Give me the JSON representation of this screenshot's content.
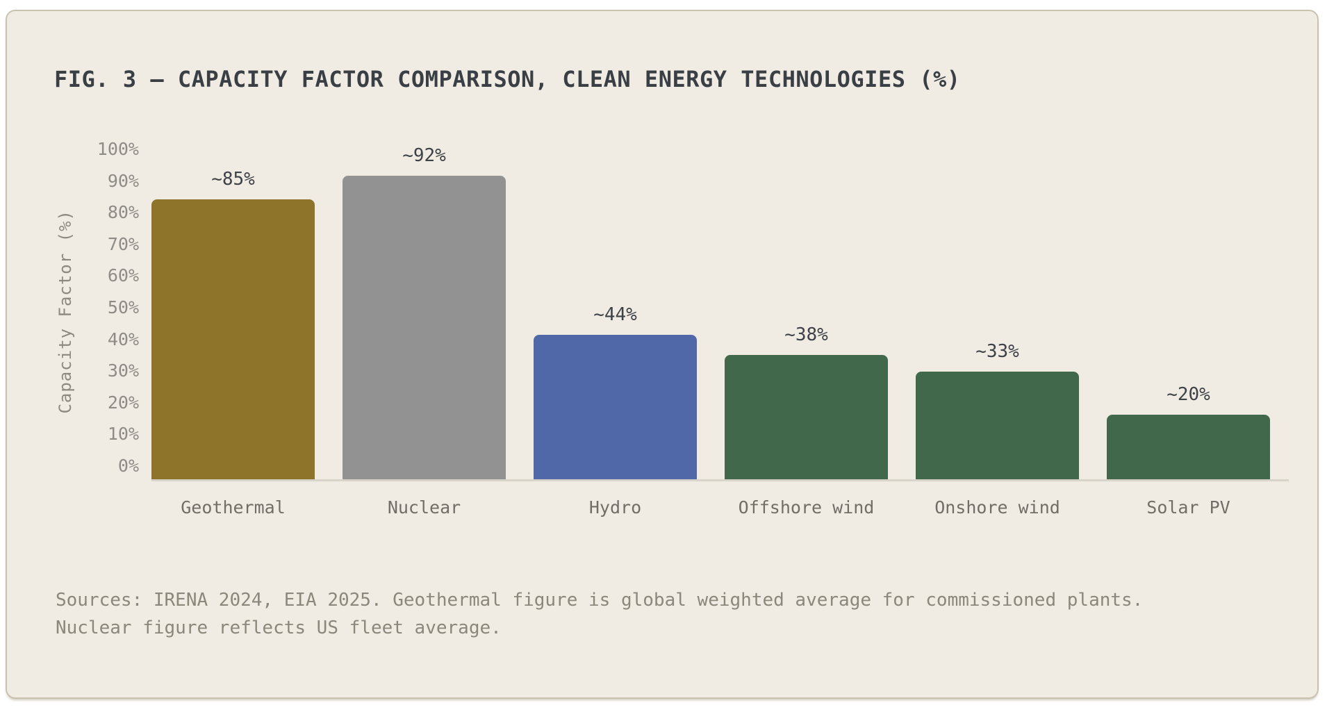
{
  "figure": {
    "title": "FIG. 3 — CAPACITY FACTOR COMPARISON, CLEAN ENERGY TECHNOLOGIES (%)",
    "source_lines": [
      "Sources: IRENA 2024, EIA 2025. Geothermal figure is global weighted average for commissioned plants.",
      "Nuclear figure reflects US fleet average."
    ]
  },
  "chart_data": {
    "type": "bar",
    "title": "FIG. 3 — CAPACITY FACTOR COMPARISON, CLEAN ENERGY TECHNOLOGIES (%)",
    "xlabel": "",
    "ylabel": "Capacity Factor (%)",
    "ylim": [
      0,
      100
    ],
    "grid": false,
    "legend": "none",
    "categories": [
      "Geothermal",
      "Nuclear",
      "Hydro",
      "Offshore wind",
      "Onshore wind",
      "Solar PV"
    ],
    "values": [
      85,
      92,
      44,
      38,
      33,
      20
    ],
    "value_labels": [
      "~85%",
      "~92%",
      "~44%",
      "~38%",
      "~33%",
      "~20%"
    ],
    "bar_colors": [
      "#8E742B",
      "#929292",
      "#5068A7",
      "#41684A",
      "#41684A",
      "#41684A"
    ],
    "yticks": [
      "0%",
      "10%",
      "20%",
      "30%",
      "40%",
      "50%",
      "60%",
      "70%",
      "80%",
      "90%",
      "100%"
    ]
  },
  "colors": {
    "page_background": "#FFFFFF",
    "card_background": "#F0ECE3",
    "card_border": "#C9C2AE",
    "title_text": "#3A3F46",
    "value_label_text": "#3E4247",
    "tick_text": "#8D8C86",
    "category_text": "#706E67",
    "source_text": "#8B877B",
    "baseline": "#D8D4CA"
  }
}
